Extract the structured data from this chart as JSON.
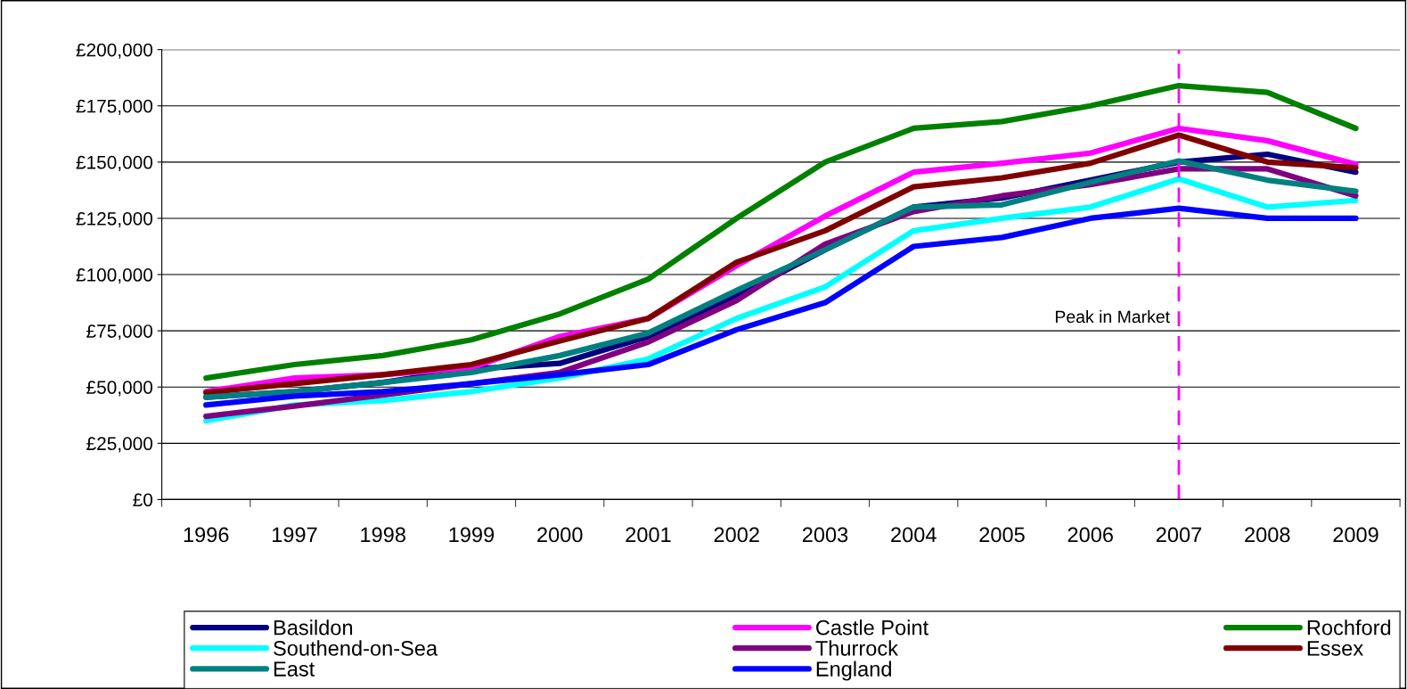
{
  "chart_data": {
    "type": "line",
    "categories": [
      "1996",
      "1997",
      "1998",
      "1999",
      "2000",
      "2001",
      "2002",
      "2003",
      "2004",
      "2005",
      "2006",
      "2007",
      "2008",
      "2009"
    ],
    "series": [
      {
        "name": "Basildon",
        "color": "#000080",
        "values": [
          45500,
          48000,
          52000,
          58000,
          60500,
          72500,
          90500,
          111000,
          130000,
          134000,
          142000,
          150000,
          153500,
          145500
        ]
      },
      {
        "name": "Castle Point",
        "color": "#ff00ff",
        "values": [
          48000,
          54000,
          55500,
          58500,
          72500,
          80500,
          104000,
          126000,
          145500,
          149500,
          154000,
          165000,
          159500,
          149000
        ]
      },
      {
        "name": "Rochford",
        "color": "#008000",
        "values": [
          54000,
          60000,
          64000,
          71000,
          82500,
          98000,
          125000,
          150000,
          165000,
          168000,
          175000,
          184000,
          181000,
          165000
        ]
      },
      {
        "name": "Southend-on-Sea",
        "color": "#00ffff",
        "values": [
          35000,
          42000,
          44000,
          48000,
          54000,
          62500,
          80500,
          94500,
          119500,
          125000,
          130000,
          142500,
          130000,
          133000
        ]
      },
      {
        "name": "Thurrock",
        "color": "#800080",
        "values": [
          37000,
          41500,
          46500,
          51500,
          56500,
          70000,
          88500,
          113500,
          128000,
          135000,
          140000,
          147000,
          147000,
          135000
        ]
      },
      {
        "name": "Essex",
        "color": "#800000",
        "values": [
          47500,
          51500,
          55500,
          60000,
          70500,
          80500,
          105500,
          119500,
          139000,
          143000,
          149500,
          162000,
          150000,
          147500
        ]
      },
      {
        "name": "East",
        "color": "#008080",
        "values": [
          45500,
          48000,
          52000,
          56500,
          64000,
          74000,
          93000,
          111000,
          130000,
          131000,
          141000,
          150500,
          142000,
          137000
        ]
      },
      {
        "name": "England",
        "color": "#0000ff",
        "values": [
          42000,
          46000,
          48000,
          51500,
          55500,
          60000,
          75500,
          87500,
          112500,
          116500,
          125000,
          129500,
          125000,
          125000
        ]
      }
    ],
    "ylim": [
      0,
      200000
    ],
    "yticks": [
      {
        "value": 0,
        "label": "£0"
      },
      {
        "value": 25000,
        "label": "£25,000"
      },
      {
        "value": 50000,
        "label": "£50,000"
      },
      {
        "value": 75000,
        "label": "£75,000"
      },
      {
        "value": 100000,
        "label": "£100,000"
      },
      {
        "value": 125000,
        "label": "£125,000"
      },
      {
        "value": 150000,
        "label": "£150,000"
      },
      {
        "value": 175000,
        "label": "£175,000"
      },
      {
        "value": 200000,
        "label": "£200,000"
      }
    ],
    "ref_lines": [
      {
        "axis": "x",
        "value": "2007",
        "label": "Peak in Market",
        "color": "#ff00ff",
        "line_style": "dashed"
      }
    ],
    "grid": "y",
    "legend": "bottom",
    "marker": "none",
    "line_style": "solid"
  }
}
